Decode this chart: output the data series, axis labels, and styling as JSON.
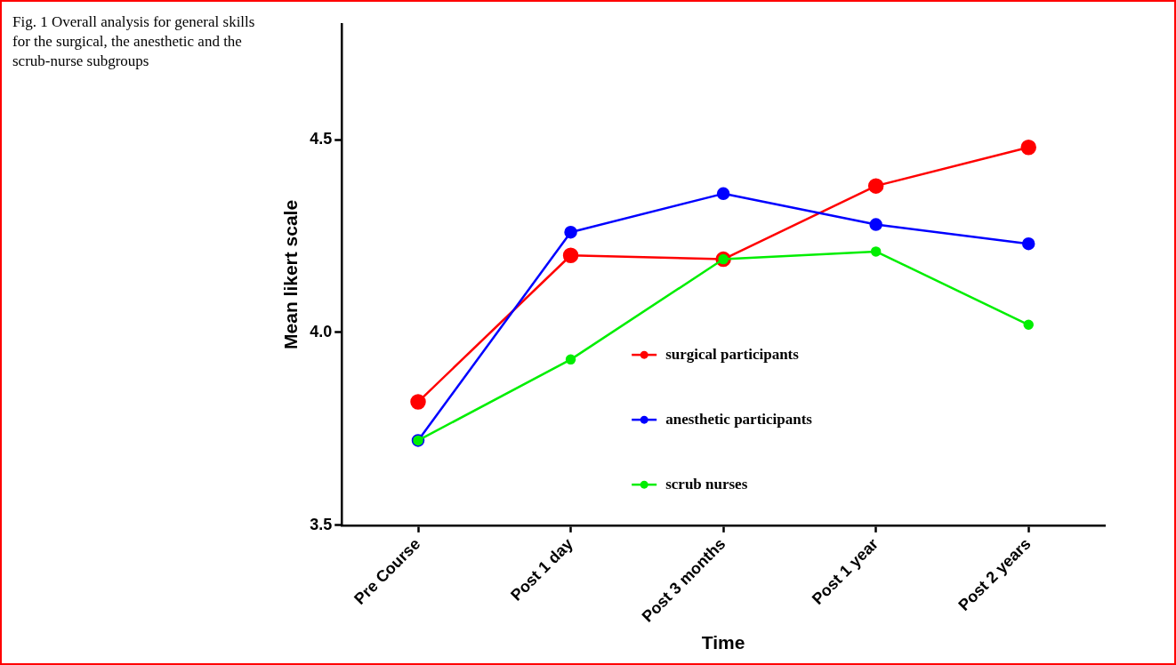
{
  "chart_data": {
    "type": "line",
    "title": "Fig. 1  Overall analysis for general skills for the surgical, the anesthetic and the scrub-nurse subgroups",
    "xlabel": "Time",
    "ylabel": "Mean likert scale",
    "categories": [
      "Pre Course",
      "Post 1 day",
      "Post 3 months",
      "Post 1 year",
      "Post 2 years"
    ],
    "series": [
      {
        "name": "surgical participants",
        "color": "#ff0000",
        "values": [
          3.82,
          4.2,
          4.19,
          4.38,
          4.48
        ]
      },
      {
        "name": "anesthetic participants",
        "color": "#0000ff",
        "values": [
          3.72,
          4.26,
          4.36,
          4.28,
          4.23
        ]
      },
      {
        "name": "scrub nurses",
        "color": "#00ee00",
        "values": [
          3.72,
          3.93,
          4.19,
          4.21,
          4.02
        ]
      }
    ],
    "ylim": [
      3.5,
      4.8
    ],
    "yticks": [
      {
        "value": 3.5,
        "label": "3.5"
      },
      {
        "value": 4,
        "label": "4.0"
      },
      {
        "value": 4.5,
        "label": "4.5"
      }
    ],
    "grid": false,
    "legend": "center",
    "marker": "circle",
    "line_style": "solid"
  }
}
